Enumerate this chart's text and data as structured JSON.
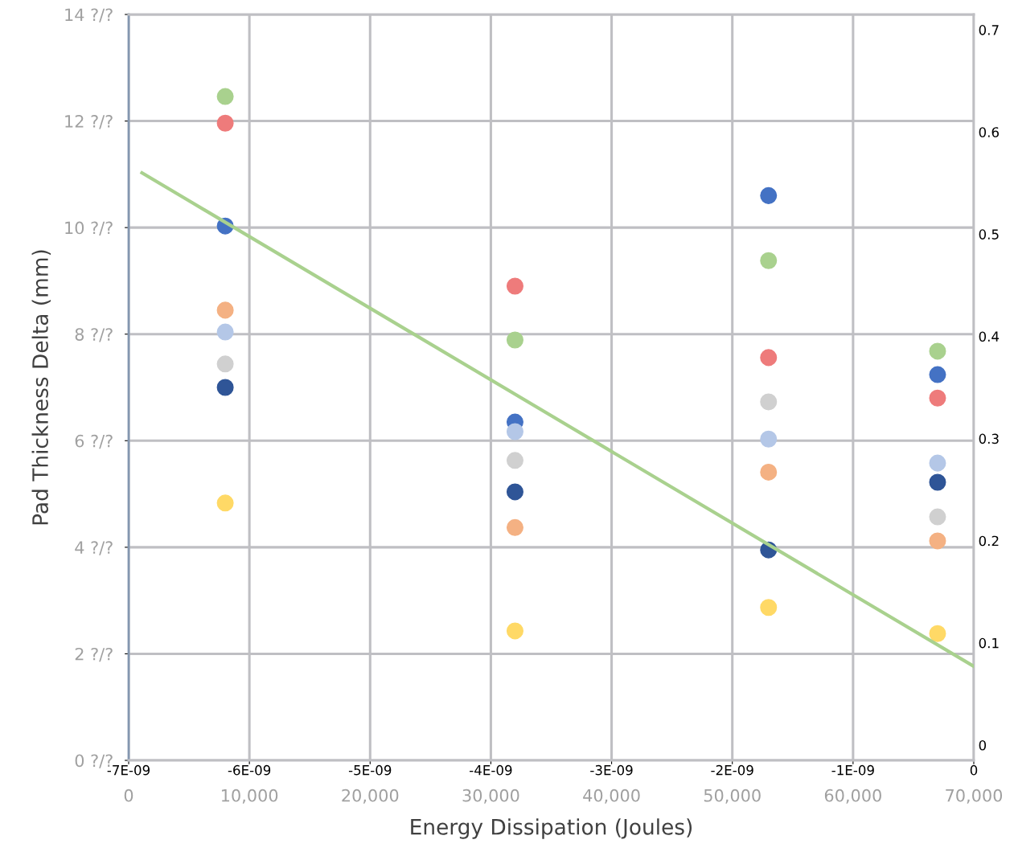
{
  "chart_data": {
    "type": "scatter",
    "xlabel": "Energy Dissipation (Joules)",
    "ylabel": "Pad Thickness Delta (mm)",
    "xlim": [
      0,
      70000
    ],
    "ylim": [
      0,
      14
    ],
    "xticks": [
      {
        "value": 0,
        "label": "0"
      },
      {
        "value": 10000,
        "label": "10,000"
      },
      {
        "value": 20000,
        "label": "20,000"
      },
      {
        "value": 30000,
        "label": "30,000"
      },
      {
        "value": 40000,
        "label": "40,000"
      },
      {
        "value": 50000,
        "label": "50,000"
      },
      {
        "value": 60000,
        "label": "60,000"
      },
      {
        "value": 70000,
        "label": "70,000"
      }
    ],
    "yticks": [
      {
        "value": 0,
        "label": "0 ?/?"
      },
      {
        "value": 2,
        "label": "2 ?/?"
      },
      {
        "value": 4,
        "label": "4 ?/?"
      },
      {
        "value": 6,
        "label": "6 ?/?"
      },
      {
        "value": 8,
        "label": "8 ?/?"
      },
      {
        "value": 10,
        "label": "10 ?/?"
      },
      {
        "value": 12,
        "label": "12 ?/?"
      },
      {
        "value": 14,
        "label": "14 ?/?"
      }
    ],
    "x2lim": [
      -7e-09,
      0
    ],
    "x2ticks": [
      {
        "value": -7e-09,
        "label": "-7E-09"
      },
      {
        "value": -6e-09,
        "label": "-6E-09"
      },
      {
        "value": -5e-09,
        "label": "-5E-09"
      },
      {
        "value": -4e-09,
        "label": "-4E-09"
      },
      {
        "value": -3e-09,
        "label": "-3E-09"
      },
      {
        "value": -2e-09,
        "label": "-2E-09"
      },
      {
        "value": -1e-09,
        "label": "-1E-09"
      },
      {
        "value": 0,
        "label": "0"
      }
    ],
    "y2lim": [
      -0.015,
      0.715
    ],
    "y2ticks": [
      0,
      0.1,
      0.2,
      0.3,
      0.4,
      0.5,
      0.6,
      0.7
    ],
    "grid": true,
    "marker": "circle",
    "x": [
      8000,
      32000,
      53000,
      67000
    ],
    "series": [
      {
        "color": "#a9d18e",
        "values": [
          12.46,
          7.89,
          9.38,
          7.68
        ]
      },
      {
        "color": "#ee7b7b",
        "values": [
          11.96,
          8.9,
          7.56,
          6.8
        ]
      },
      {
        "color": "#4472c4",
        "values": [
          10.03,
          6.35,
          10.6,
          7.24
        ]
      },
      {
        "color": "#b4c7e7",
        "values": [
          8.04,
          6.17,
          6.03,
          5.58
        ]
      },
      {
        "color": "#2f5597",
        "values": [
          7.0,
          5.04,
          3.95,
          5.22
        ]
      },
      {
        "color": "#d0d0d0",
        "values": [
          7.44,
          5.63,
          6.73,
          4.57
        ]
      },
      {
        "color": "#f4b183",
        "values": [
          8.45,
          4.37,
          5.41,
          4.12
        ]
      },
      {
        "color": "#ffd966",
        "values": [
          4.83,
          2.43,
          2.87,
          2.38
        ]
      },
      {
        "type": "line",
        "axis": "y2",
        "marker": "none",
        "color": "#a9d18e",
        "x": [
          1100,
          70000
        ],
        "values": [
          0.56,
          0.077
        ]
      }
    ]
  }
}
